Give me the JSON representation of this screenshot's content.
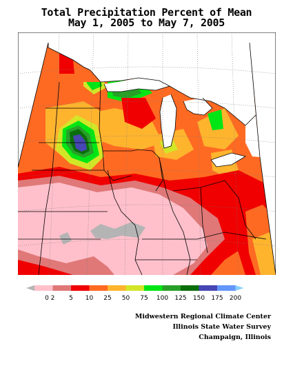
{
  "title_line1": "Total Precipitation Percent of Mean",
  "title_line2": "May 1, 2005 to May 7, 2005",
  "legend": {
    "bins": [
      {
        "label": "0",
        "color": "#b4b4b4"
      },
      {
        "label": "2",
        "color": "#ffc0cb"
      },
      {
        "label": "5",
        "color": "#e07878"
      },
      {
        "label": "10",
        "color": "#f00000"
      },
      {
        "label": "25",
        "color": "#ff6a22"
      },
      {
        "label": "50",
        "color": "#ffb42e"
      },
      {
        "label": "75",
        "color": "#d2e628"
      },
      {
        "label": "100",
        "color": "#00e614"
      },
      {
        "label": "125",
        "color": "#28a028"
      },
      {
        "label": "150",
        "color": "#0a6e0a"
      },
      {
        "label": "175",
        "color": "#4646b4"
      },
      {
        "label": "200",
        "color": "#6496fa"
      }
    ],
    "over_color": "#87cefa"
  },
  "credits": {
    "line1": "Midwestern Regional Climate Center",
    "line2": "Illinois State Water Survey",
    "line3": "Champaign, Illinois"
  }
}
